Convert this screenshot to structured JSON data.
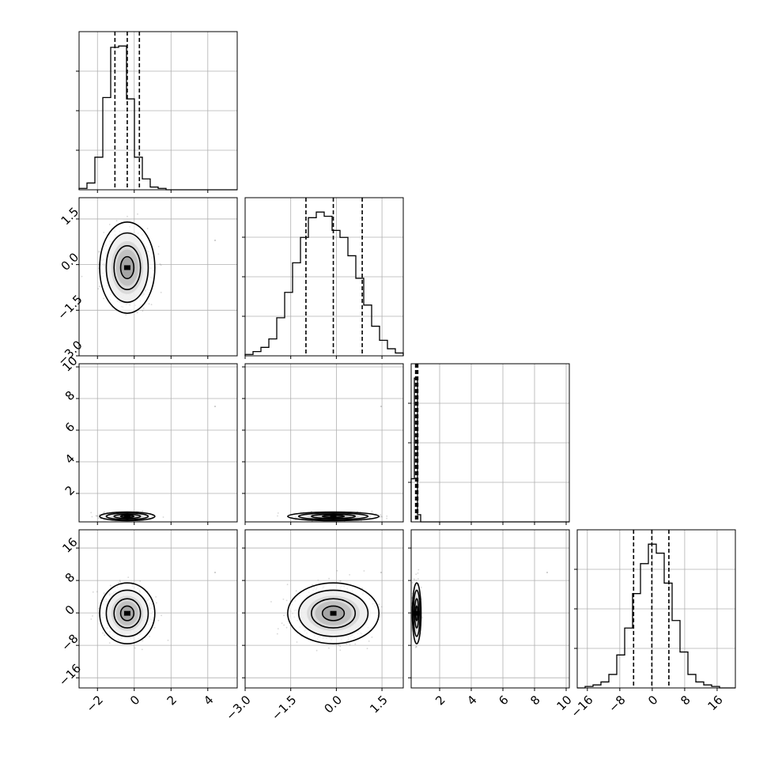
{
  "chart_data": {
    "type": "corner",
    "grid": true,
    "quantiles_shown": [
      0.16,
      0.5,
      0.84
    ],
    "parameters": [
      {
        "index": 0,
        "range": [
          -3.0,
          5.6
        ],
        "ticks": [
          -2,
          0,
          2,
          4
        ],
        "tick_labels": [
          "−2",
          "0",
          "2",
          "4"
        ]
      },
      {
        "index": 1,
        "range": [
          -3.0,
          2.2
        ],
        "ticks": [
          -3.0,
          -1.5,
          0.0,
          1.5
        ],
        "tick_labels": [
          "−3.0",
          "−1.5",
          "0.0",
          "1.5"
        ]
      },
      {
        "index": 2,
        "range": [
          0.2,
          10.2
        ],
        "ticks": [
          2,
          4,
          6,
          8,
          10
        ],
        "tick_labels": [
          "2",
          "4",
          "6",
          "8",
          "10"
        ]
      },
      {
        "index": 3,
        "range": [
          -18.5,
          20.5
        ],
        "ticks": [
          -16,
          -8,
          0,
          8,
          16
        ],
        "tick_labels": [
          "−16",
          "−8",
          "0",
          "8",
          "16"
        ]
      }
    ],
    "histograms": [
      {
        "param": 0,
        "bin_edges": [
          -3.0,
          -2.57,
          -2.14,
          -1.71,
          -1.28,
          -0.85,
          -0.42,
          0.01,
          0.44,
          0.87,
          1.3,
          1.73,
          2.16,
          5.6
        ],
        "counts": [
          1,
          5,
          24,
          68,
          105,
          106,
          67,
          24,
          8,
          2,
          1,
          0,
          0
        ],
        "quantiles": [
          -1.05,
          -0.38,
          0.28
        ]
      },
      {
        "param": 1,
        "bin_edges": [
          -3.0,
          -2.74,
          -2.48,
          -2.22,
          -1.96,
          -1.7,
          -1.44,
          -1.18,
          -0.92,
          -0.66,
          -0.4,
          -0.14,
          0.12,
          0.38,
          0.64,
          0.9,
          1.16,
          1.42,
          1.68,
          1.94,
          2.2
        ],
        "counts": [
          1,
          3,
          6,
          12,
          27,
          45,
          66,
          84,
          98,
          102,
          99,
          89,
          84,
          71,
          55,
          36,
          21,
          11,
          5,
          2
        ],
        "quantiles": [
          -1.0,
          -0.1,
          0.85
        ]
      },
      {
        "param": 2,
        "bin_edges": [
          0.2,
          0.4,
          0.6,
          0.8,
          10.2
        ],
        "counts": [
          30,
          100,
          5,
          0
        ],
        "quantiles": [
          0.48,
          0.55,
          0.62
        ]
      },
      {
        "param": 3,
        "bin_edges": [
          -18.5,
          -16.55,
          -14.6,
          -12.65,
          -10.7,
          -8.75,
          -6.8,
          -4.85,
          -2.9,
          -0.95,
          1.0,
          2.95,
          4.9,
          6.85,
          8.8,
          10.75,
          12.7,
          14.65,
          16.6,
          18.55,
          20.5
        ],
        "counts": [
          0,
          1,
          2,
          4,
          9,
          22,
          40,
          63,
          83,
          96,
          90,
          70,
          45,
          24,
          9,
          4,
          2,
          1,
          0,
          0
        ],
        "quantiles": [
          -4.6,
          -0.1,
          4.1
        ]
      }
    ],
    "joint": [
      {
        "x": 0,
        "y": 1,
        "center": [
          -0.38,
          -0.1
        ],
        "sigma": [
          0.6,
          0.6
        ]
      },
      {
        "x": 0,
        "y": 2,
        "center": [
          -0.38,
          0.55
        ],
        "sigma": [
          0.6,
          0.06
        ]
      },
      {
        "x": 1,
        "y": 2,
        "center": [
          -0.1,
          0.55
        ],
        "sigma": [
          0.6,
          0.06
        ]
      },
      {
        "x": 0,
        "y": 3,
        "center": [
          -0.38,
          -0.1
        ],
        "sigma": [
          0.6,
          3.0
        ]
      },
      {
        "x": 1,
        "y": 3,
        "center": [
          -0.1,
          -0.1
        ],
        "sigma": [
          0.6,
          3.0
        ]
      },
      {
        "x": 2,
        "y": 3,
        "center": [
          0.55,
          -0.1
        ],
        "sigma": [
          0.06,
          3.0
        ]
      }
    ]
  }
}
